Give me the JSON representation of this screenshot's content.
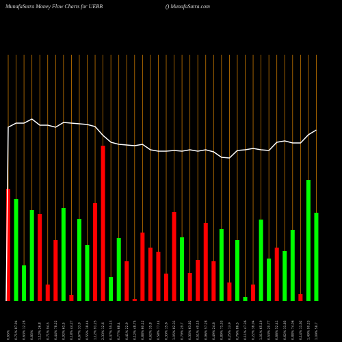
{
  "chart_data": {
    "type": "bar",
    "title": "MunafaSutra  Money Flow  Charts for UEBB",
    "subtitle": "() MunafaSutra.com",
    "categories": [
      "0.65%",
      "0.71% 87.94",
      "0.63% 12.28",
      "0.85%",
      "1.12% 26.8",
      "0.71% 94.5",
      "0.44% 78.22",
      "0.92% 61.5",
      "0.18% 44.27",
      "0.67% 33.9",
      "0.55% 18.44",
      "1.12% 91.25",
      "2.33% 12.6",
      "0.37% 55.13",
      "0.77% 68.4",
      "0.41% 22.9",
      "0.12% 48.75",
      "0.88% 60.12",
      "0.62% 35.8",
      "0.58% 77.44",
      "0.33% 15.6",
      "1.05% 82.31",
      "0.79% 29.7",
      "0.35% 63.82",
      "0.51% 40.15",
      "0.96% 57.28",
      "0.49% 24.6",
      "0.89% 71.33",
      "0.25% 13.9",
      "0.76% 86.5",
      "0.11% 47.36",
      "0.22% 38.04",
      "1.01% 65.19",
      "0.53% 20.77",
      "0.66% 52.41",
      "0.62% 31.85",
      "0.88% 74.06",
      "0.14% 11.62",
      "1.49% 90.23",
      "1.09% 58.7"
    ],
    "values": [
      164,
      149,
      52,
      133,
      127,
      24,
      89,
      136,
      9,
      120,
      82,
      143,
      227,
      35,
      92,
      58,
      3,
      100,
      78,
      72,
      40,
      130,
      93,
      41,
      60,
      114,
      58,
      105,
      27,
      89,
      6,
      24,
      119,
      62,
      78,
      73,
      104,
      10,
      177,
      129
    ],
    "colors": [
      "#ff0000",
      "#00ff00",
      "#00ff00",
      "#00ff00",
      "#ff0000",
      "#ff0000",
      "#ff0000",
      "#00ff00",
      "#ff0000",
      "#00ff00",
      "#00ff00",
      "#ff0000",
      "#ff0000",
      "#00ff00",
      "#00ff00",
      "#ff0000",
      "#ff0000",
      "#ff0000",
      "#ff0000",
      "#ff0000",
      "#ff0000",
      "#ff0000",
      "#00ff00",
      "#ff0000",
      "#ff0000",
      "#ff0000",
      "#ff0000",
      "#00ff00",
      "#ff0000",
      "#00ff00",
      "#00ff00",
      "#ff0000",
      "#00ff00",
      "#00ff00",
      "#ff0000",
      "#00ff00",
      "#00ff00",
      "#ff0000",
      "#00ff00",
      "#00ff00"
    ],
    "line_values": [
      254,
      260,
      260,
      266,
      257,
      257,
      254,
      261,
      260,
      259,
      258,
      255,
      242,
      232,
      229,
      228,
      227,
      229,
      221,
      219,
      219,
      220,
      219,
      221,
      219,
      221,
      218,
      210,
      209,
      220,
      221,
      223,
      221,
      220,
      232,
      234,
      231,
      231,
      243,
      250
    ],
    "line_color": "#ffffff",
    "grid_color": "#c87800",
    "ylim": [
      0,
      360
    ]
  }
}
